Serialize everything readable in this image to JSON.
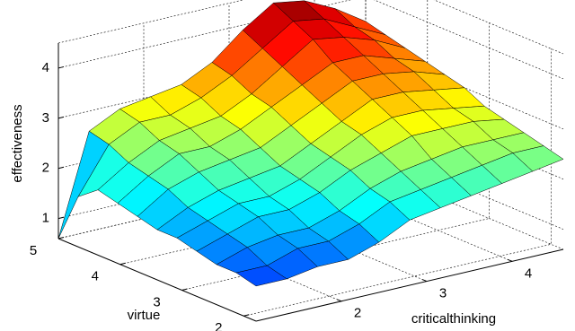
{
  "chart_data": {
    "type": "surface",
    "xlabel": "criticalthinking",
    "ylabel": "virtue",
    "zlabel": "effectiveness",
    "x": [
      1.0,
      1.36,
      1.72,
      2.08,
      2.44,
      2.8,
      3.16,
      3.52,
      3.88,
      4.24,
      4.6
    ],
    "y": [
      1.8,
      2.12,
      2.44,
      2.76,
      3.08,
      3.4,
      3.72,
      4.04,
      4.36,
      4.68,
      5.0
    ],
    "z": [
      [
        1.3,
        1.3,
        1.4,
        1.4,
        1.6,
        1.9,
        2.0,
        2.1,
        2.2,
        2.3,
        2.4
      ],
      [
        1.4,
        1.4,
        1.6,
        1.6,
        1.8,
        2.1,
        2.2,
        2.3,
        2.4,
        2.5,
        2.5
      ],
      [
        1.4,
        1.6,
        1.7,
        1.7,
        1.9,
        2.2,
        2.4,
        2.5,
        2.6,
        2.6,
        2.6
      ],
      [
        1.5,
        1.7,
        1.9,
        1.9,
        2.1,
        2.4,
        2.6,
        2.8,
        2.8,
        2.8,
        2.7
      ],
      [
        1.6,
        1.8,
        2.0,
        2.0,
        2.2,
        2.5,
        2.8,
        3.0,
        3.0,
        2.9,
        2.8
      ],
      [
        1.6,
        1.9,
        2.1,
        2.2,
        2.3,
        2.6,
        2.9,
        3.2,
        3.2,
        3.1,
        3.0
      ],
      [
        1.7,
        2.1,
        2.3,
        2.4,
        2.5,
        2.8,
        3.1,
        3.4,
        3.4,
        3.3,
        3.1
      ],
      [
        1.8,
        2.2,
        2.5,
        2.5,
        2.7,
        3.0,
        3.3,
        3.6,
        3.6,
        3.4,
        3.2
      ],
      [
        1.9,
        2.3,
        2.6,
        2.7,
        2.8,
        3.1,
        3.5,
        3.9,
        3.8,
        3.6,
        3.3
      ],
      [
        1.6,
        2.5,
        2.8,
        2.8,
        3.0,
        3.3,
        3.7,
        4.1,
        4.0,
        3.7,
        3.4
      ],
      [
        0.6,
        2.6,
        2.9,
        3.0,
        3.1,
        3.4,
        3.9,
        4.3,
        4.2,
        3.9,
        3.5
      ]
    ],
    "xlim": [
      1.0,
      4.6
    ],
    "ylim": [
      1.8,
      5.0
    ],
    "zlim": [
      0.6,
      4.5
    ],
    "xticks": [
      2,
      3,
      4
    ],
    "yticks": [
      2,
      3,
      4,
      5
    ],
    "zticks": [
      1,
      2,
      3,
      4
    ],
    "grid": true,
    "colormap": "jet",
    "edgecolor": "#000000"
  }
}
